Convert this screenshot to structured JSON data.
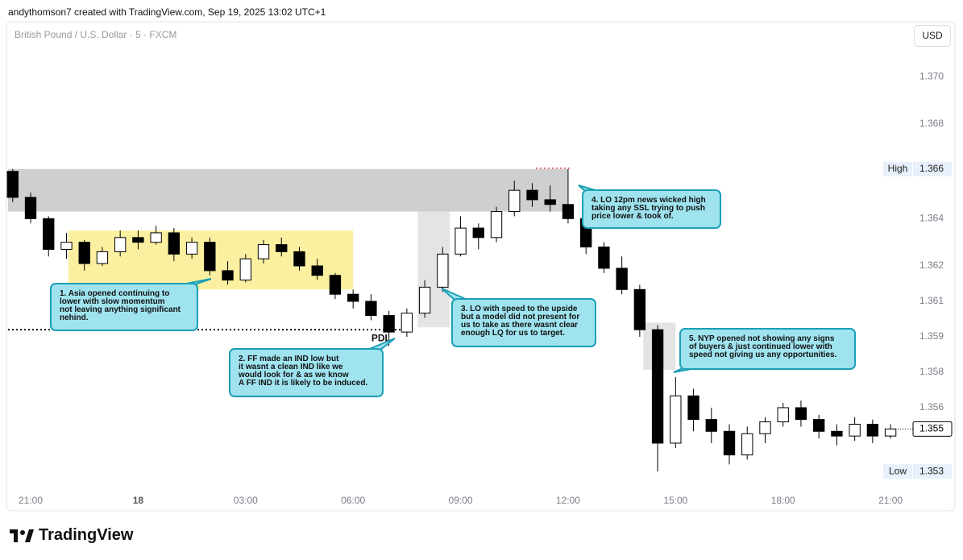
{
  "chart_data": {
    "type": "candlestick",
    "header": "andythomson7 created with TradingView.com, Sep 19, 2025 13:02 UTC+1",
    "title": "British Pound / U.S. Dollar · 5 · FXCM",
    "currency": "USD",
    "brand": "TradingView",
    "xlim": [
      -0.63,
      24.56
    ],
    "ylim": [
      1.3516,
      1.3724
    ],
    "xticks": [
      {
        "value": 0,
        "label": "21:00"
      },
      {
        "value": 3,
        "label": "18"
      },
      {
        "value": 6,
        "label": "03:00"
      },
      {
        "value": 9,
        "label": "06:00"
      },
      {
        "value": 12,
        "label": "09:00"
      },
      {
        "value": 15,
        "label": "12:00"
      },
      {
        "value": 18,
        "label": "15:00"
      },
      {
        "value": 21,
        "label": "18:00"
      },
      {
        "value": 24,
        "label": "21:00"
      }
    ],
    "yticks": [
      {
        "value": 1.37,
        "label": "1.370"
      },
      {
        "value": 1.368,
        "label": "1.368"
      },
      {
        "value": 1.364,
        "label": "1.364"
      },
      {
        "value": 1.362,
        "label": "1.362"
      },
      {
        "value": 1.3605,
        "label": "1.361"
      },
      {
        "value": 1.359,
        "label": "1.359"
      },
      {
        "value": 1.3575,
        "label": "1.358"
      },
      {
        "value": 1.356,
        "label": "1.356"
      }
    ],
    "up_color": "#ffffff",
    "down_color": "#000000",
    "x": [
      -0.5,
      0,
      0.5,
      1,
      1.5,
      2,
      2.5,
      3,
      3.5,
      4,
      4.5,
      5,
      5.5,
      6,
      6.5,
      7,
      7.5,
      8,
      8.5,
      9,
      9.5,
      10,
      10.5,
      11,
      11.5,
      12,
      12.5,
      13,
      13.5,
      14,
      14.5,
      15,
      15.5,
      16,
      16.5,
      17,
      17.5,
      18,
      18.5,
      19,
      19.5,
      20,
      20.5,
      21,
      21.5,
      22,
      22.5,
      23,
      23.5,
      24
    ],
    "open": [
      1.366,
      1.3649,
      1.364,
      1.3627,
      1.363,
      1.3621,
      1.3626,
      1.3632,
      1.363,
      1.3634,
      1.3625,
      1.363,
      1.3618,
      1.3614,
      1.3623,
      1.3629,
      1.3626,
      1.362,
      1.3616,
      1.3608,
      1.3605,
      1.3599,
      1.3592,
      1.36,
      1.3611,
      1.3625,
      1.3636,
      1.3632,
      1.3643,
      1.3652,
      1.3648,
      1.3646,
      1.364,
      1.3628,
      1.3619,
      1.361,
      1.3593,
      1.3545,
      1.3565,
      1.3555,
      1.355,
      1.354,
      1.3549,
      1.3554,
      1.356,
      1.3555,
      1.355,
      1.3548,
      1.3553,
      1.3548
    ],
    "high": [
      1.3661,
      1.3651,
      1.3641,
      1.3634,
      1.3631,
      1.3628,
      1.3635,
      1.3635,
      1.3637,
      1.3636,
      1.3632,
      1.3632,
      1.3622,
      1.3625,
      1.3631,
      1.3632,
      1.3628,
      1.3623,
      1.3617,
      1.361,
      1.3608,
      1.3601,
      1.3602,
      1.3614,
      1.3628,
      1.3641,
      1.3638,
      1.3645,
      1.3656,
      1.3655,
      1.3654,
      1.3661,
      1.3642,
      1.363,
      1.3624,
      1.3612,
      1.3595,
      1.3573,
      1.3568,
      1.356,
      1.3553,
      1.3552,
      1.3556,
      1.3562,
      1.3563,
      1.3557,
      1.3553,
      1.3556,
      1.3555,
      1.3553
    ],
    "low": [
      1.3647,
      1.3638,
      1.3624,
      1.3623,
      1.3618,
      1.362,
      1.3624,
      1.3627,
      1.3629,
      1.3622,
      1.3623,
      1.3616,
      1.3612,
      1.3613,
      1.3621,
      1.3624,
      1.3618,
      1.3614,
      1.3606,
      1.3602,
      1.3597,
      1.3586,
      1.359,
      1.3598,
      1.3609,
      1.3624,
      1.3627,
      1.363,
      1.3641,
      1.3645,
      1.3643,
      1.3638,
      1.3625,
      1.3617,
      1.3608,
      1.359,
      1.3533,
      1.3543,
      1.355,
      1.3545,
      1.3536,
      1.3538,
      1.3545,
      1.3552,
      1.3552,
      1.3547,
      1.3544,
      1.3546,
      1.3545,
      1.3547
    ],
    "close": [
      1.3649,
      1.364,
      1.3627,
      1.363,
      1.3621,
      1.3626,
      1.3632,
      1.363,
      1.3634,
      1.3625,
      1.363,
      1.3618,
      1.3614,
      1.3623,
      1.3629,
      1.3626,
      1.362,
      1.3616,
      1.3608,
      1.3605,
      1.3599,
      1.3592,
      1.36,
      1.3611,
      1.3625,
      1.3636,
      1.3632,
      1.3643,
      1.3652,
      1.3648,
      1.3646,
      1.364,
      1.3628,
      1.3619,
      1.361,
      1.3593,
      1.3545,
      1.3565,
      1.3555,
      1.355,
      1.354,
      1.3549,
      1.3554,
      1.356,
      1.3555,
      1.355,
      1.3548,
      1.3553,
      1.3548,
      1.3551
    ],
    "zones": [
      {
        "x": [
          -0.63,
          15.0
        ],
        "y": [
          1.3643,
          1.3661
        ],
        "color": "#cfcfcf"
      },
      {
        "x": [
          1.05,
          9.0
        ],
        "y": [
          1.361,
          1.3635
        ],
        "color": "#fbf0a0"
      },
      {
        "x": [
          10.8,
          11.7
        ],
        "y": [
          1.3594,
          1.3643
        ],
        "color": "#e4e4e6"
      },
      {
        "x": [
          17.1,
          18.0
        ],
        "y": [
          1.3576,
          1.3596
        ],
        "color": "#e4e4e6"
      }
    ],
    "pdl": {
      "label": "PDL",
      "value": 1.3593,
      "x": [
        -0.63,
        10.5
      ]
    },
    "high_line": {
      "value": 1.3661,
      "x": [
        14.1,
        15.1
      ],
      "color": "#e05050"
    },
    "markers": [
      {
        "name": "High",
        "value": 1.3661,
        "value_label": "1.366"
      },
      {
        "name": "Low",
        "value": 1.3533,
        "value_label": "1.353"
      }
    ],
    "last_price": {
      "value": 1.3551,
      "label": "1.355"
    },
    "annotations": [
      {
        "text": "1. Asia opened continuing to\nlower with slow momentum\nnot leaving anything significant\nnehind."
      },
      {
        "text": "2. FF made an IND low but\nit wasnt a clean IND like we\nwould look for & as we know\nA FF IND it is likely to be induced."
      },
      {
        "text": "3. LO with speed to the upside\nbut a model did not present for\nus to take as there wasnt clear\nenough LQ for us to target."
      },
      {
        "text": "4. LO 12pm news wicked high\ntaking any SSL trying to push\nprice lower & took of."
      },
      {
        "text": "5. NYP opened not showing any signs\nof buyers & just continued lower with\nspeed not giving us any opportunities."
      }
    ]
  }
}
